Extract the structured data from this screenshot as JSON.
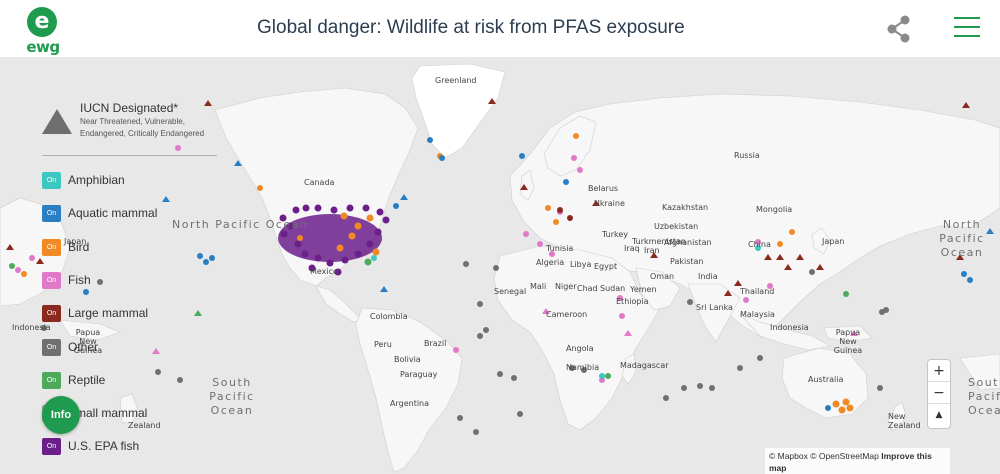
{
  "header": {
    "logo_text": "ewg",
    "logo_letter": "e",
    "title": "Global danger: Wildlife at risk from PFAS exposure"
  },
  "legend": {
    "iucn_title": "IUCN Designated*",
    "iucn_subtitle": "Near Threatened, Vulnerable, Endangered, Critically Endangered",
    "chip_text": "On",
    "items": [
      {
        "label": "Amphibian",
        "color": "#3cc8c0"
      },
      {
        "label": "Aquatic mammal",
        "color": "#2a7fc4"
      },
      {
        "label": "Bird",
        "color": "#f08a24"
      },
      {
        "label": "Fish",
        "color": "#e07ac8"
      },
      {
        "label": "Large mammal",
        "color": "#8a2a1e"
      },
      {
        "label": "Other",
        "color": "#707070"
      },
      {
        "label": "Reptile",
        "color": "#4caa5a"
      },
      {
        "label": "Small mammal",
        "color": "#a0a0a0"
      },
      {
        "label": "U.S. EPA fish",
        "color": "#6b1f8a"
      }
    ]
  },
  "info_button": "Info",
  "zoom": {
    "in": "+",
    "out": "−",
    "compass": "▲"
  },
  "attribution": {
    "mapbox": "© Mapbox",
    "osm": "© OpenStreetMap",
    "improve": "Improve this map"
  },
  "map": {
    "ocean_labels": {
      "north_pacific_left": "North Pacific Ocean",
      "north_pacific_right": "North Pacific Ocean",
      "south_pacific": "South Pacific Ocean",
      "south_right": "South Pacific Ocean"
    },
    "places": {
      "greenland": "Greenland",
      "canada": "Canada",
      "russia": "Russia",
      "belarus": "Belarus",
      "ukraine": "Ukraine",
      "kazakhstan": "Kazakhstan",
      "mongolia": "Mongolia",
      "turkey": "Turkey",
      "uzbekistan": "Uzbekistan",
      "turkmenistan": "Turkmenistan",
      "china": "China",
      "japan_left": "Japan",
      "japan_right": "Japan",
      "tunisia": "Tunisia",
      "algeria": "Algeria",
      "libya": "Libya",
      "egypt": "Egypt",
      "iraq": "Iraq",
      "iran": "Iran",
      "afghanistan": "Afghanistan",
      "pakistan": "Pakistan",
      "india": "India",
      "oman": "Oman",
      "yemen": "Yemen",
      "thailand": "Thailand",
      "sri_lanka": "Sri Lanka",
      "malaysia": "Malaysia",
      "indonesia_left": "Indonesia",
      "indonesia_right": "Indonesia",
      "papua_left": "Papua New Guinea",
      "papua_right": "Papua New Guinea",
      "australia": "Australia",
      "new_zealand_left": "Zealand",
      "new_zealand_right": "New Zealand",
      "mexico": "Mexico",
      "colombia": "Colombia",
      "peru": "Peru",
      "brazil": "Brazil",
      "bolivia": "Bolivia",
      "paraguay": "Paraguay",
      "argentina": "Argentina",
      "senegal": "Senegal",
      "mali": "Mali",
      "niger": "Niger",
      "sudan": "Sudan",
      "chad": "Chad",
      "ethiopia": "Ethiopia",
      "cameroon": "Cameroon",
      "angola": "Angola",
      "namibia": "Namibia",
      "madagascar": "Madagascar"
    }
  }
}
